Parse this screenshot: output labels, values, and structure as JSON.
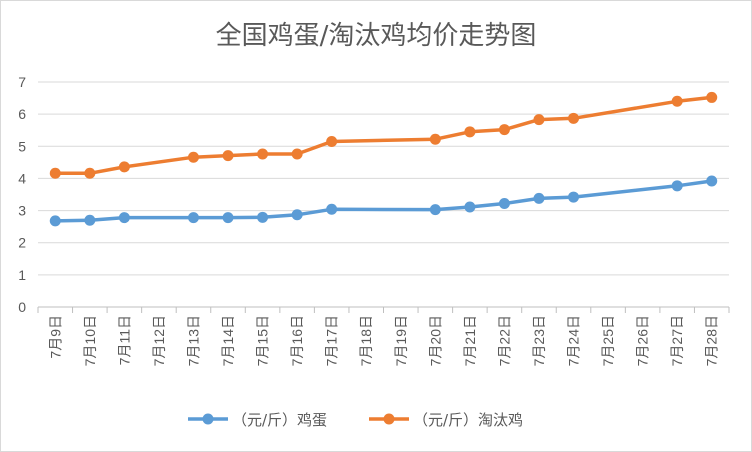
{
  "chart_data": {
    "type": "line",
    "title": "全国鸡蛋/淘汰鸡均价走势图",
    "xlabel": "",
    "ylabel": "",
    "categories": [
      "7月9日",
      "7月10日",
      "7月11日",
      "7月12日",
      "7月13日",
      "7月14日",
      "7月15日",
      "7月16日",
      "7月17日",
      "7月18日",
      "7月19日",
      "7月20日",
      "7月21日",
      "7月22日",
      "7月23日",
      "7月24日",
      "7月25日",
      "7月26日",
      "7月27日",
      "7月28日"
    ],
    "ylim": [
      0,
      7
    ],
    "yticks": [
      0,
      1,
      2,
      3,
      4,
      5,
      6,
      7
    ],
    "grid": true,
    "legend_position": "bottom",
    "series": [
      {
        "name": "（元/斤）鸡蛋",
        "color": "#5B9BD5",
        "values": [
          2.68,
          2.7,
          2.78,
          null,
          2.78,
          2.78,
          2.79,
          2.87,
          3.04,
          null,
          null,
          3.03,
          3.11,
          3.22,
          3.38,
          3.42,
          null,
          null,
          3.77,
          3.92
        ]
      },
      {
        "name": "（元/斤）淘汰鸡",
        "color": "#ED7D31",
        "values": [
          4.16,
          4.16,
          4.36,
          null,
          4.66,
          4.71,
          4.76,
          4.76,
          5.15,
          null,
          null,
          5.22,
          5.45,
          5.52,
          5.83,
          5.87,
          null,
          null,
          6.4,
          6.52
        ]
      }
    ]
  }
}
